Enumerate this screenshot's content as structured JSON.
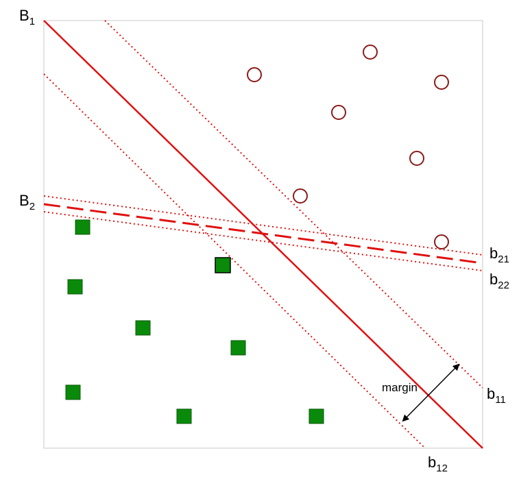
{
  "labels": {
    "B1": {
      "main": "B",
      "sub": "1"
    },
    "B2": {
      "main": "B",
      "sub": "2"
    },
    "b11": {
      "main": "b",
      "sub": "11"
    },
    "b12": {
      "main": "b",
      "sub": "12"
    },
    "b21": {
      "main": "b",
      "sub": "21"
    },
    "b22": {
      "main": "b",
      "sub": "22"
    },
    "margin": "margin"
  },
  "colors": {
    "boundary": "#e01010",
    "circle": "#8b1a1a",
    "square_fill": "#0a8a0a",
    "square_stroke": "#0a5a0a",
    "frame": "#c8c8c8"
  }
}
